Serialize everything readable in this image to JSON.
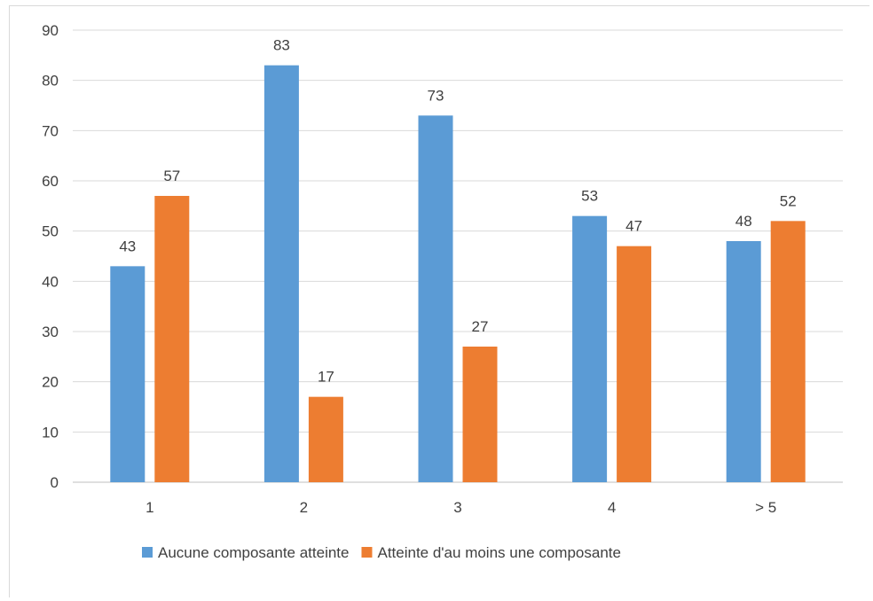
{
  "chart_data": {
    "type": "bar",
    "categories": [
      "1",
      "2",
      "3",
      "4",
      "> 5"
    ],
    "series": [
      {
        "name": "Aucune composante atteinte",
        "values": [
          43,
          83,
          73,
          53,
          48
        ],
        "color": "#5b9bd5"
      },
      {
        "name": "Atteinte d'au moins une composante",
        "values": [
          57,
          17,
          27,
          47,
          52
        ],
        "color": "#ed7d31"
      }
    ],
    "title": "",
    "xlabel": "",
    "ylabel": "",
    "ylim": [
      0,
      90
    ],
    "yticks": [
      0,
      10,
      20,
      30,
      40,
      50,
      60,
      70,
      80,
      90
    ],
    "grid": true,
    "legend": "bottom",
    "data_labels": true
  }
}
